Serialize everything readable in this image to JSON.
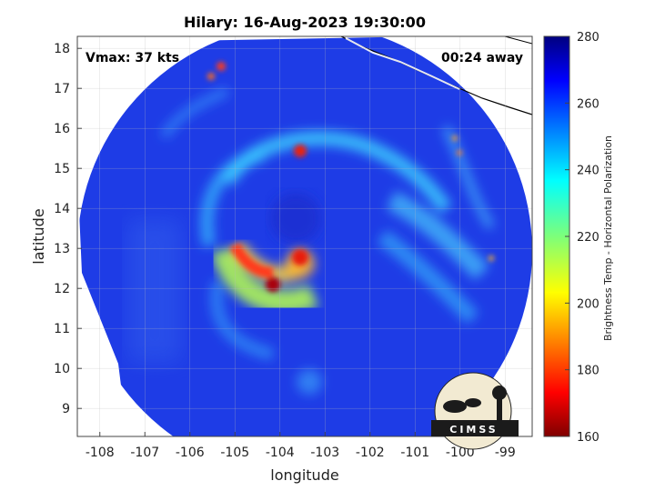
{
  "title": "Hilary: 16-Aug-2023 19:30:00",
  "annotations": {
    "vmax": "Vmax: 37 kts",
    "time_away": "00:24 away"
  },
  "axes": {
    "xlabel": "longitude",
    "ylabel": "latitude",
    "x_range": [
      -108.5,
      -98.4
    ],
    "y_range": [
      8.3,
      18.3
    ],
    "x_ticks": [
      -108,
      -107,
      -106,
      -105,
      -104,
      -103,
      -102,
      -101,
      -100,
      -99
    ],
    "y_ticks": [
      9,
      10,
      11,
      12,
      13,
      14,
      15,
      16,
      17,
      18
    ],
    "grid": true
  },
  "colorbar": {
    "label": "Brightness Temp - Horizontal Polarization",
    "range": [
      160,
      280
    ],
    "ticks": [
      160,
      180,
      200,
      220,
      240,
      260,
      280
    ],
    "colormap": "jet"
  },
  "logo": {
    "text": "CIMSS"
  },
  "colors": {
    "background_field": "#1e3ce6",
    "land_coast": "#000000"
  }
}
